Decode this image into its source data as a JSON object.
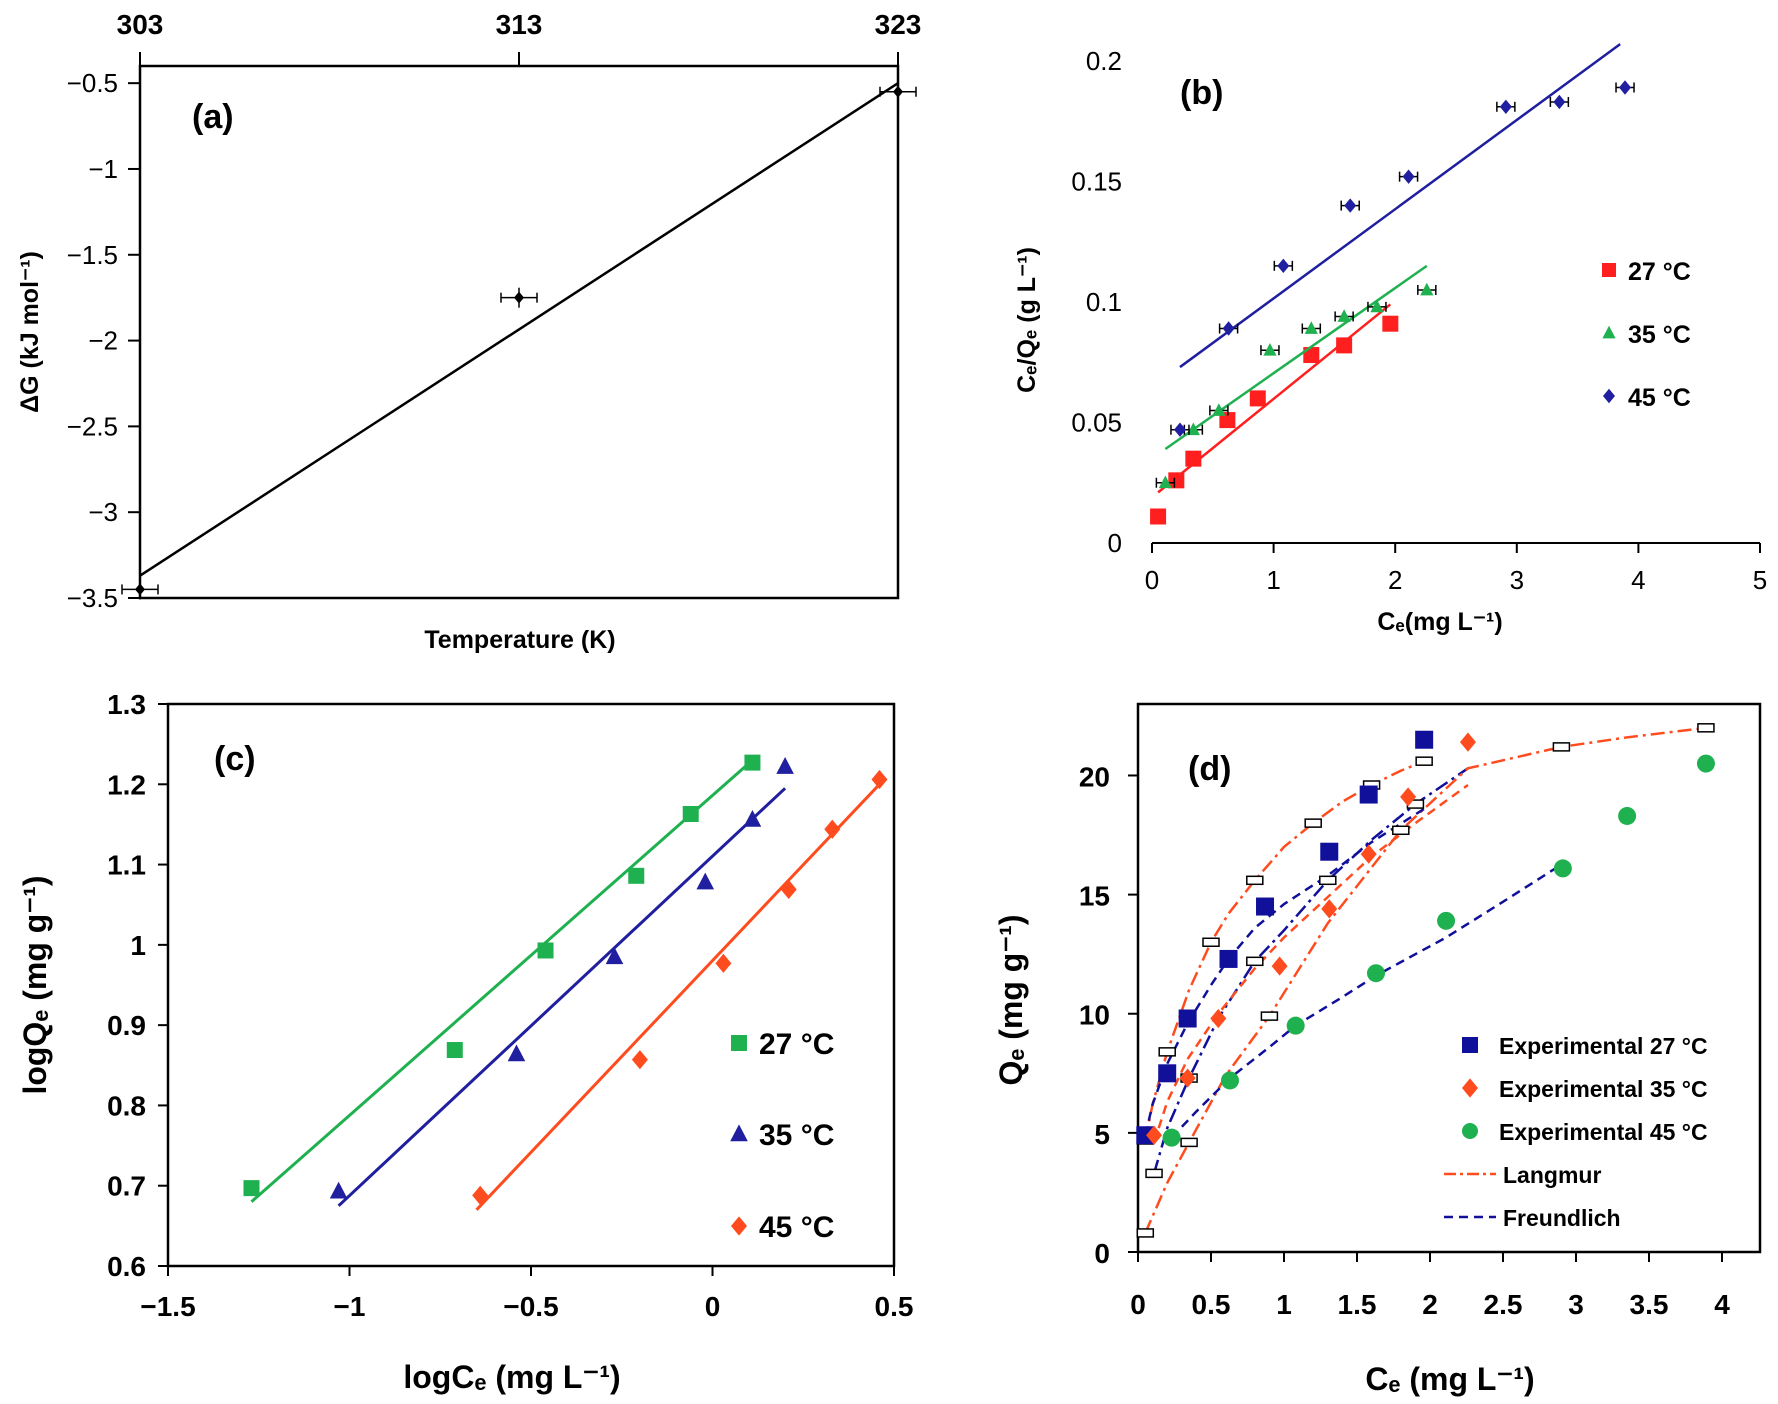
{
  "colors": {
    "red": "#ff1f1f",
    "green": "#1fb050",
    "blue": "#1f1f9f",
    "orange": "#ff4c1f",
    "navy": "#10109a",
    "black": "#000000"
  },
  "chart_data": [
    {
      "id": "a",
      "type": "scatter",
      "panel_label": "(a)",
      "xlabel": "Temperature  (K)",
      "ylabel": "ΔG (kJ mol⁻¹)",
      "xlim": [
        303,
        323
      ],
      "ylim": [
        -3.5,
        -0.4
      ],
      "x_ticks": [
        "303",
        "313",
        "323"
      ],
      "y_ticks": [
        "−0.5",
        "−1",
        "−1.5",
        "−2",
        "−2.5",
        "−3",
        "−3.5"
      ],
      "series": [
        {
          "points": [
            [
              303,
              -3.45
            ],
            [
              313,
              -1.75
            ],
            [
              323,
              -0.55
            ]
          ],
          "trendline": [
            [
              303,
              -3.37
            ],
            [
              323,
              -0.5
            ]
          ]
        }
      ]
    },
    {
      "id": "b",
      "type": "scatter",
      "panel_label": "(b)",
      "xlabel": "Cₑ(mg L⁻¹)",
      "ylabel": "Cₑ/Qₑ (g L⁻¹)",
      "xlim": [
        0,
        5
      ],
      "ylim": [
        0,
        0.2
      ],
      "x_ticks": [
        "0",
        "1",
        "2",
        "3",
        "4",
        "5"
      ],
      "y_ticks": [
        "0",
        "0.05",
        "0.1",
        "0.15",
        "0.2"
      ],
      "series": [
        {
          "name": "27 °C",
          "x": [
            0.05,
            0.2,
            0.34,
            0.62,
            0.87,
            1.31,
            1.58,
            1.96
          ],
          "y": [
            0.011,
            0.026,
            0.035,
            0.051,
            0.06,
            0.078,
            0.082,
            0.091
          ],
          "trendline": [
            [
              0.05,
              0.021
            ],
            [
              1.96,
              0.099
            ]
          ]
        },
        {
          "name": "35 °C",
          "x": [
            0.11,
            0.34,
            0.55,
            0.97,
            1.31,
            1.58,
            1.85,
            2.26
          ],
          "y": [
            0.025,
            0.047,
            0.055,
            0.08,
            0.089,
            0.094,
            0.098,
            0.105
          ],
          "trendline": [
            [
              0.11,
              0.039
            ],
            [
              2.26,
              0.115
            ]
          ]
        },
        {
          "name": "45 °C",
          "x": [
            0.23,
            0.63,
            1.08,
            1.63,
            2.11,
            2.91,
            3.35,
            3.89
          ],
          "y": [
            0.047,
            0.089,
            0.115,
            0.14,
            0.152,
            0.181,
            0.183,
            0.189
          ],
          "trendline": [
            [
              0.23,
              0.073
            ],
            [
              3.85,
              0.207
            ]
          ]
        }
      ]
    },
    {
      "id": "c",
      "type": "scatter",
      "panel_label": "(c)",
      "xlabel": "logCₑ (mg L⁻¹)",
      "ylabel": "logQₑ (mg g⁻¹)",
      "xlim": [
        -1.5,
        0.5
      ],
      "ylim": [
        0.6,
        1.3
      ],
      "x_ticks": [
        "−1.5",
        "−1",
        "−0.5",
        "0",
        "0.5"
      ],
      "y_ticks": [
        "0.6",
        "0.7",
        "0.8",
        "0.9",
        "1",
        "1.1",
        "1.2",
        "1.3"
      ],
      "series": [
        {
          "name": "27 °C",
          "x": [
            -1.27,
            -0.71,
            -0.46,
            -0.21,
            -0.06,
            0.11
          ],
          "y": [
            0.697,
            0.869,
            0.993,
            1.086,
            1.163,
            1.227
          ],
          "trendline": [
            [
              -1.27,
              0.68
            ],
            [
              0.11,
              1.23
            ]
          ]
        },
        {
          "name": "35 °C",
          "x": [
            -1.03,
            -0.54,
            -0.27,
            -0.02,
            0.11,
            0.2
          ],
          "y": [
            0.693,
            0.864,
            0.985,
            1.078,
            1.156,
            1.222
          ],
          "trendline": [
            [
              -1.03,
              0.675
            ],
            [
              0.2,
              1.195
            ]
          ]
        },
        {
          "name": "45 °C",
          "x": [
            -0.64,
            -0.2,
            0.03,
            0.21,
            0.33,
            0.46
          ],
          "y": [
            0.688,
            0.857,
            0.977,
            1.069,
            1.144,
            1.206
          ],
          "trendline": [
            [
              -0.65,
              0.67
            ],
            [
              0.46,
              1.2
            ]
          ]
        }
      ]
    },
    {
      "id": "d",
      "type": "scatter",
      "panel_label": "(d)",
      "xlabel": "Cₑ (mg L⁻¹)",
      "ylabel": "Qₑ (mg g⁻¹)",
      "xlim": [
        0,
        4
      ],
      "ylim": [
        0,
        23
      ],
      "x_ticks": [
        "0",
        "0.5",
        "1",
        "1.5",
        "2",
        "2.5",
        "3",
        "3.5",
        "4"
      ],
      "y_ticks": [
        "0",
        "5",
        "10",
        "15",
        "20"
      ],
      "series": [
        {
          "name": "Experimental 27 °C",
          "x": [
            0.05,
            0.2,
            0.34,
            0.62,
            0.87,
            1.31,
            1.58,
            1.96
          ],
          "y": [
            4.9,
            7.5,
            9.8,
            12.3,
            14.5,
            16.8,
            19.2,
            21.5
          ]
        },
        {
          "name": "Experimental 35 °C",
          "x": [
            0.11,
            0.34,
            0.55,
            0.97,
            1.31,
            1.58,
            1.85,
            2.26
          ],
          "y": [
            4.9,
            7.3,
            9.8,
            12.0,
            14.4,
            16.7,
            19.1,
            21.4
          ]
        },
        {
          "name": "Experimental 45 °C",
          "x": [
            0.23,
            0.63,
            1.08,
            1.63,
            2.11,
            2.91,
            3.35,
            3.89
          ],
          "y": [
            4.8,
            7.2,
            9.5,
            11.7,
            13.9,
            16.1,
            18.3,
            20.5
          ]
        },
        {
          "name": "Langmur",
          "style": "dash-dot",
          "curves": [
            {
              "x": [
                0.05,
                0.1,
                0.2,
                0.35,
                0.5,
                0.62,
                0.8,
                1.0,
                1.2,
                1.4,
                1.6,
                1.8,
                1.96
              ],
              "y": [
                4.7,
                6.2,
                8.4,
                11.0,
                13.0,
                14.2,
                15.6,
                17.0,
                18.0,
                18.9,
                19.6,
                20.2,
                20.6
              ]
            },
            {
              "x": [
                0.11,
                0.2,
                0.35,
                0.55,
                0.8,
                1.0,
                1.3,
                1.6,
                1.9,
                2.26
              ],
              "y": [
                3.3,
                5.2,
                7.3,
                9.8,
                12.2,
                13.5,
                15.6,
                17.3,
                18.8,
                20.3
              ]
            },
            {
              "x": [
                0.05,
                0.2,
                0.35,
                0.6,
                0.9,
                1.3,
                1.8,
                2.26,
                2.9,
                3.35,
                3.89
              ],
              "y": [
                0.8,
                2.9,
                4.6,
                7.4,
                9.9,
                13.8,
                17.7,
                20.3,
                21.2,
                21.6,
                22.0
              ]
            }
          ]
        },
        {
          "name": "Freundlich",
          "style": "dashed",
          "curves": [
            {
              "x": [
                0.05,
                0.1,
                0.2,
                0.34,
                0.5,
                0.62,
                0.8,
                1.0,
                1.3,
                1.6,
                1.96
              ],
              "y": [
                4.9,
                6.2,
                7.9,
                9.6,
                11.2,
                12.3,
                13.6,
                14.6,
                15.8,
                17.2,
                18.6
              ]
            },
            {
              "x": [
                0.11,
                0.2,
                0.34,
                0.55,
                0.8,
                1.0,
                1.3,
                1.6,
                1.9,
                2.26
              ],
              "y": [
                4.6,
                6.3,
                8.1,
                10.0,
                11.9,
                13.2,
                14.9,
                16.6,
                18.0,
                19.6
              ]
            },
            {
              "x": [
                0.23,
                0.4,
                0.63,
                0.9,
                1.08,
                1.4,
                1.63,
                2.11,
                2.5,
                2.91
              ],
              "y": [
                4.8,
                5.9,
                7.3,
                8.6,
                9.5,
                10.7,
                11.6,
                13.2,
                14.7,
                16.3
              ]
            }
          ]
        }
      ]
    }
  ]
}
